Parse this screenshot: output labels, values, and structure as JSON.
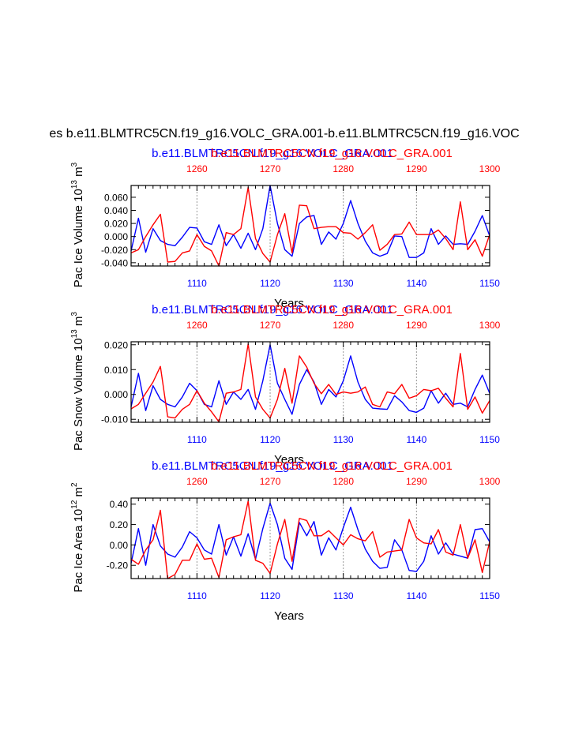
{
  "title": "es b.e11.BLMTRC5CN.f19_g16.VOLC_GRA.001-b.e11.BLMTRC5CN.f19_g16.VOC",
  "colors": {
    "case1": "#0000ff",
    "case2": "#ff0000",
    "axis": "#000000",
    "grid": "#999999"
  },
  "chart_data": [
    {
      "type": "line",
      "name": "ice-volume",
      "ylabel": "Pac Ice Volume 10",
      "ylabel_exp": "13",
      "ylabel_unit": " m",
      "ylabel_unit_exp": "3",
      "xlabel": "Years",
      "xlim": [
        1101,
        1150
      ],
      "ylim": [
        -0.045,
        0.078
      ],
      "top_xlim": [
        1251,
        1300
      ],
      "yticks": [
        -0.04,
        -0.02,
        0.0,
        0.02,
        0.04,
        0.06
      ],
      "ytick_labels": [
        "-0.040",
        "-0.020",
        "0.000",
        "0.020",
        "0.040",
        "0.060"
      ],
      "xticks": [
        1110,
        1120,
        1130,
        1140,
        1150
      ],
      "xtick_labels": [
        "1110",
        "1120",
        "1130",
        "1140",
        "1150"
      ],
      "top_xticks": [
        1260,
        1270,
        1280,
        1290,
        1300
      ],
      "top_xtick_labels": [
        "1260",
        "1270",
        "1280",
        "1290",
        "1300"
      ],
      "top_title_blue": "b.e11.BLMTRC5CN.f19_g16.VOLC_GRA.001",
      "top_title_red": "b.e11.BLMTRC5CN.f19_g16.VOLC_GRA.001",
      "series": [
        {
          "name": "b.e11.BLMTRC5CN.f19_g16.VOLC_GRA.001",
          "color": "#0000ff",
          "x_start": 1101,
          "values": [
            -0.022,
            0.028,
            -0.024,
            0.012,
            -0.006,
            -0.012,
            -0.014,
            -0.001,
            0.014,
            0.013,
            -0.008,
            -0.012,
            0.018,
            -0.014,
            0.003,
            -0.018,
            0.005,
            -0.02,
            0.012,
            0.078,
            0.02,
            -0.02,
            -0.03,
            0.02,
            0.03,
            0.032,
            -0.012,
            0.007,
            -0.004,
            0.02,
            0.055,
            0.02,
            -0.007,
            -0.025,
            -0.03,
            -0.026,
            0.001,
            0.0,
            -0.032,
            -0.032,
            -0.025,
            0.012,
            -0.012,
            0.001,
            -0.012,
            -0.011,
            -0.012,
            0.008,
            0.032,
            0.001
          ]
        },
        {
          "name": "b.e11.BLMTRC5CN.f19_g16.VOLC_GRA.001",
          "color": "#ff0000",
          "x_start": 1101,
          "values": [
            -0.025,
            -0.02,
            0.0,
            0.018,
            0.034,
            -0.039,
            -0.038,
            -0.025,
            -0.022,
            0.003,
            -0.015,
            -0.022,
            -0.045,
            0.006,
            0.003,
            0.012,
            0.075,
            -0.003,
            -0.026,
            -0.039,
            0.003,
            0.035,
            -0.025,
            0.048,
            0.047,
            0.012,
            0.014,
            0.015,
            0.015,
            0.006,
            0.005,
            -0.004,
            0.006,
            0.018,
            -0.021,
            -0.012,
            0.003,
            0.004,
            0.022,
            0.003,
            0.003,
            0.003,
            0.01,
            -0.003,
            -0.02,
            0.053,
            -0.02,
            -0.005,
            -0.03,
            0.003
          ]
        }
      ]
    },
    {
      "type": "line",
      "name": "snow-volume",
      "ylabel": "Pac Snow Volume 10",
      "ylabel_exp": "13",
      "ylabel_unit": " m",
      "ylabel_unit_exp": "3",
      "xlabel": "Years",
      "xlim": [
        1101,
        1150
      ],
      "ylim": [
        -0.0112,
        0.0212
      ],
      "top_xlim": [
        1251,
        1300
      ],
      "yticks": [
        -0.01,
        0.0,
        0.01,
        0.02
      ],
      "ytick_labels": [
        "-0.010",
        "0.000",
        "0.010",
        "0.020"
      ],
      "xticks": [
        1110,
        1120,
        1130,
        1140,
        1150
      ],
      "xtick_labels": [
        "1110",
        "1120",
        "1130",
        "1140",
        "1150"
      ],
      "top_xticks": [
        1260,
        1270,
        1280,
        1290,
        1300
      ],
      "top_xtick_labels": [
        "1260",
        "1270",
        "1280",
        "1290",
        "1300"
      ],
      "top_title_blue": "b.e11.BLMTRC5CN.f19_g16.VOLC_GRA.001",
      "top_title_red": "b.e11.BLMTRC5CN.f19_g16.VOLC_GRA.001",
      "series": [
        {
          "name": "b.e11.BLMTRC5CN.f19_g16.VOLC_GRA.001",
          "color": "#0000ff",
          "x_start": 1101,
          "values": [
            -0.005,
            0.0085,
            -0.0065,
            0.0035,
            -0.002,
            -0.004,
            -0.005,
            -0.001,
            0.0045,
            0.0015,
            -0.004,
            -0.005,
            0.0055,
            -0.004,
            0.001,
            -0.002,
            0.002,
            -0.006,
            0.0055,
            0.02,
            0.0045,
            -0.002,
            -0.008,
            0.004,
            0.01,
            0.005,
            -0.004,
            0.002,
            -0.001,
            0.0055,
            0.0155,
            0.005,
            -0.002,
            -0.0055,
            -0.0058,
            -0.006,
            -0.0005,
            -0.003,
            -0.0065,
            -0.0072,
            -0.0055,
            0.0015,
            -0.0035,
            0.0005,
            -0.004,
            -0.0035,
            -0.005,
            0.002,
            0.0078,
            0.0005
          ]
        },
        {
          "name": "b.e11.BLMTRC5CN.f19_g16.VOLC_GRA.001",
          "color": "#ff0000",
          "x_start": 1101,
          "values": [
            -0.0058,
            -0.004,
            0.0005,
            0.005,
            0.0113,
            -0.009,
            -0.0095,
            -0.006,
            -0.004,
            0.0015,
            -0.0035,
            -0.007,
            -0.011,
            0.0005,
            0.001,
            0.002,
            0.0203,
            -0.001,
            -0.006,
            -0.0095,
            -0.002,
            0.0105,
            -0.0035,
            0.0155,
            0.011,
            0.0045,
            0.0003,
            0.004,
            0.0,
            0.001,
            0.0005,
            0.001,
            0.003,
            -0.004,
            -0.005,
            0.001,
            0.0003,
            0.004,
            -0.0015,
            -0.0005,
            0.002,
            0.0015,
            0.0025,
            -0.0015,
            -0.005,
            0.0165,
            -0.006,
            -0.001,
            -0.0075,
            -0.0025
          ]
        }
      ]
    },
    {
      "type": "line",
      "name": "ice-area",
      "ylabel": "Pac Ice Area 10",
      "ylabel_exp": "12",
      "ylabel_unit": " m",
      "ylabel_unit_exp": "2",
      "xlabel": "Years",
      "xlim": [
        1101,
        1150
      ],
      "ylim": [
        -0.33,
        0.46
      ],
      "top_xlim": [
        1251,
        1300
      ],
      "yticks": [
        -0.2,
        0.0,
        0.2,
        0.4
      ],
      "ytick_labels": [
        "-0.20",
        "0.00",
        "0.20",
        "0.40"
      ],
      "xticks": [
        1110,
        1120,
        1130,
        1140,
        1150
      ],
      "xtick_labels": [
        "1110",
        "1120",
        "1130",
        "1140",
        "1150"
      ],
      "top_xticks": [
        1260,
        1270,
        1280,
        1290,
        1300
      ],
      "top_xtick_labels": [
        "1260",
        "1270",
        "1280",
        "1290",
        "1300"
      ],
      "top_title_blue": "b.e11.BLMTRC5CN.f19_g16.VOLC_GRA.001",
      "top_title_red": "b.e11.BLMTRC5CN.f19_g16.VOLC_GRA.001",
      "series": [
        {
          "name": "b.e11.BLMTRC5CN.f19_g16.VOLC_GRA.001",
          "color": "#0000ff",
          "x_start": 1101,
          "values": [
            -0.18,
            0.16,
            -0.2,
            0.2,
            -0.01,
            -0.09,
            -0.12,
            -0.02,
            0.13,
            0.07,
            -0.05,
            -0.09,
            0.2,
            -0.1,
            0.08,
            -0.11,
            0.11,
            -0.14,
            0.16,
            0.41,
            0.2,
            -0.13,
            -0.24,
            0.22,
            0.09,
            0.23,
            -0.1,
            0.07,
            -0.05,
            0.17,
            0.37,
            0.15,
            -0.04,
            -0.16,
            -0.23,
            -0.22,
            0.05,
            -0.05,
            -0.25,
            -0.26,
            -0.16,
            0.09,
            -0.09,
            0.02,
            -0.09,
            -0.11,
            -0.13,
            0.15,
            0.16,
            0.03
          ]
        },
        {
          "name": "b.e11.BLMTRC5CN.f19_g16.VOLC_GRA.001",
          "color": "#ff0000",
          "x_start": 1101,
          "values": [
            -0.14,
            -0.19,
            -0.05,
            0.05,
            0.34,
            -0.33,
            -0.29,
            -0.15,
            -0.15,
            0.01,
            -0.14,
            -0.13,
            -0.32,
            0.05,
            0.08,
            0.1,
            0.43,
            -0.15,
            -0.18,
            -0.28,
            0.01,
            0.25,
            -0.16,
            0.26,
            0.24,
            0.09,
            0.09,
            0.14,
            0.07,
            0.0,
            0.1,
            0.06,
            0.04,
            0.13,
            -0.12,
            -0.07,
            -0.06,
            -0.05,
            0.25,
            0.07,
            0.02,
            0.01,
            0.15,
            -0.07,
            -0.1,
            0.2,
            -0.13,
            0.05,
            -0.27,
            0.03
          ]
        }
      ]
    }
  ]
}
